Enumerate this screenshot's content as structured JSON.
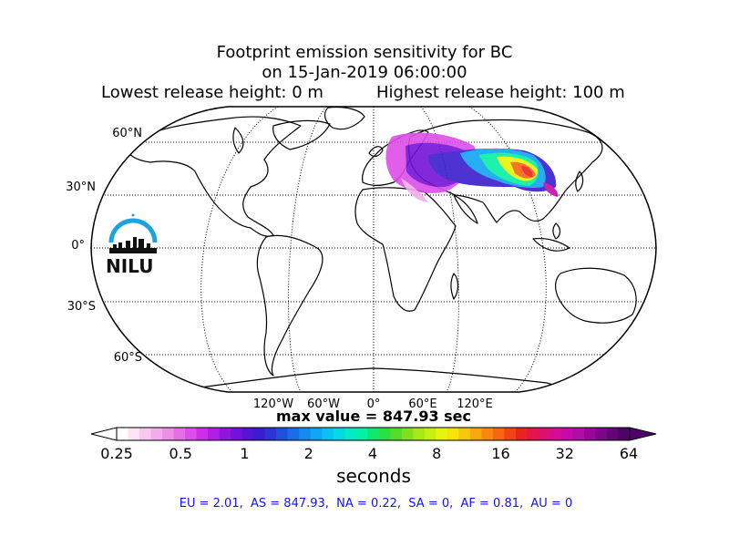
{
  "title": {
    "line1": "Footprint emission sensitivity for BC",
    "line2": "on 15-Jan-2019 06:00:00",
    "line3_left": "Lowest release height: 0 m",
    "line3_right": "Highest release height: 100 m"
  },
  "map": {
    "projection": "Robinson",
    "latitude_labels": [
      "60°N",
      "30°N",
      "0°",
      "30°S",
      "60°S"
    ],
    "longitude_labels": [
      "120°W",
      "60°W",
      "0°",
      "60°E",
      "120°E"
    ]
  },
  "logo": {
    "text": "NILU",
    "color": "#1fa3dc"
  },
  "max_value_text": "max value = 847.93 sec",
  "colorbar": {
    "tick_labels": [
      "0.25",
      "0.5",
      "1",
      "2",
      "4",
      "8",
      "16",
      "32",
      "64"
    ],
    "label": "seconds",
    "colors": [
      "#ffffff",
      "#fde3f5",
      "#f9c9ef",
      "#f3acea",
      "#ee8fe6",
      "#e56de6",
      "#dc4ee8",
      "#cc2fe9",
      "#b11ee4",
      "#9214df",
      "#7412d8",
      "#5514d3",
      "#3a1ecd",
      "#2a35d4",
      "#2050df",
      "#1a6de8",
      "#1489ee",
      "#0fa5f2",
      "#0bbff0",
      "#08d7e4",
      "#06e8c8",
      "#05f0a2",
      "#0fe86c",
      "#2ae042",
      "#55dc2a",
      "#80e01f",
      "#a6e818",
      "#c8ef12",
      "#e6f40d",
      "#f6e30b",
      "#f8c60c",
      "#f9a70e",
      "#f98810",
      "#f76612",
      "#f04316",
      "#e8241f",
      "#e3154a",
      "#dd0f72",
      "#d60b93",
      "#c80aa8",
      "#b10ba8",
      "#97089a",
      "#7c0687",
      "#650477",
      "#4f0366"
    ]
  },
  "stats_text": "EU = 2.01,  AS = 847.93,  NA = 0.22,  SA = 0,  AF = 0.81,  AU = 0"
}
